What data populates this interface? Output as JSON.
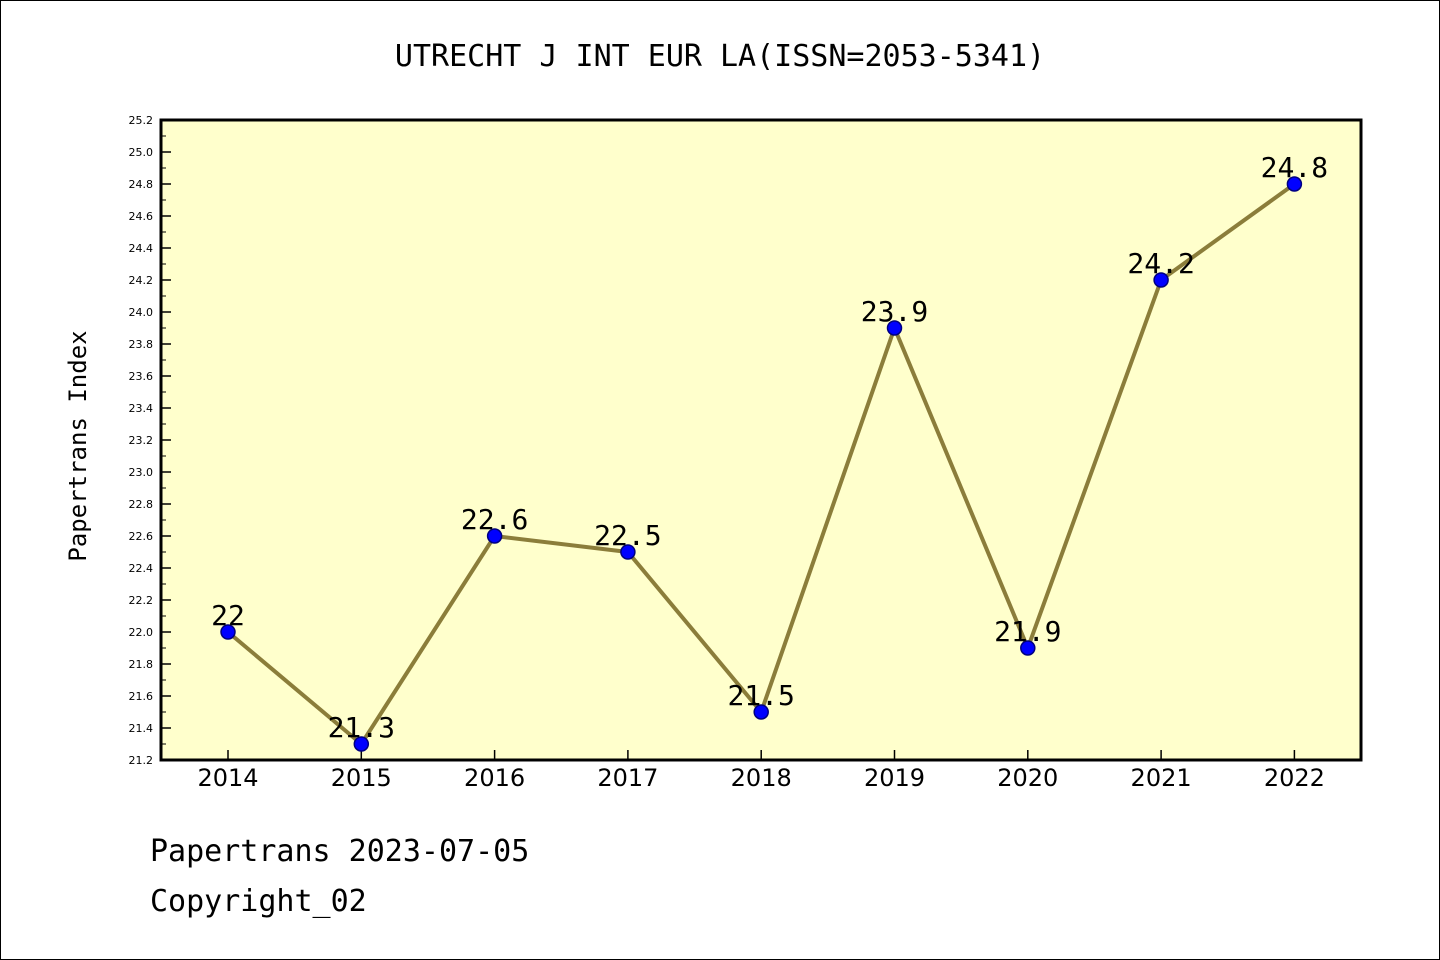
{
  "colors": {
    "plot_background": "#ffffcc",
    "line": "#8b7d3a",
    "marker": "#0000ff",
    "marker_edge": "#000080"
  },
  "chart_data": {
    "type": "line",
    "title": "UTRECHT J INT EUR LA(ISSN=2053-5341)",
    "xlabel": "",
    "ylabel": "Papertrans Index",
    "x": [
      2014,
      2015,
      2016,
      2017,
      2018,
      2019,
      2020,
      2021,
      2022
    ],
    "series": [
      {
        "values": [
          22,
          21.3,
          22.6,
          22.5,
          21.5,
          23.9,
          21.9,
          24.2,
          24.8
        ],
        "point_labels": [
          "22",
          "21.3",
          "22.6",
          "22.5",
          "21.5",
          "23.9",
          "21.9",
          "24.2",
          "24.8"
        ]
      }
    ],
    "ylim": [
      21.2,
      25.2
    ],
    "yticks": [
      "21.2",
      "21.4",
      "21.6",
      "21.8",
      "22.0",
      "22.2",
      "22.4",
      "22.6",
      "22.8",
      "23.0",
      "23.2",
      "23.4",
      "23.6",
      "23.8",
      "24.0",
      "24.2",
      "24.4",
      "24.6",
      "24.8",
      "25.0",
      "25.2"
    ],
    "xticks": [
      "2014",
      "2015",
      "2016",
      "2017",
      "2018",
      "2019",
      "2020",
      "2021",
      "2022"
    ],
    "grid": false,
    "legend": "none"
  },
  "footer": {
    "line1": "Papertrans 2023-07-05",
    "line2": "Copyright_02"
  }
}
